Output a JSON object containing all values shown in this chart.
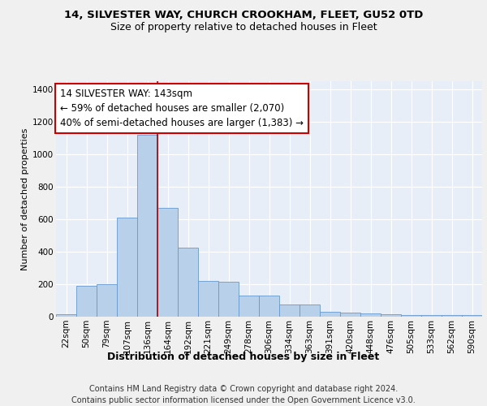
{
  "title1": "14, SILVESTER WAY, CHURCH CROOKHAM, FLEET, GU52 0TD",
  "title2": "Size of property relative to detached houses in Fleet",
  "xlabel": "Distribution of detached houses by size in Fleet",
  "ylabel": "Number of detached properties",
  "categories": [
    "22sqm",
    "50sqm",
    "79sqm",
    "107sqm",
    "136sqm",
    "164sqm",
    "192sqm",
    "221sqm",
    "249sqm",
    "278sqm",
    "306sqm",
    "334sqm",
    "363sqm",
    "391sqm",
    "420sqm",
    "448sqm",
    "476sqm",
    "505sqm",
    "533sqm",
    "562sqm",
    "590sqm"
  ],
  "values": [
    15,
    190,
    200,
    610,
    1120,
    670,
    425,
    220,
    215,
    130,
    130,
    75,
    75,
    30,
    25,
    20,
    15,
    12,
    10,
    8,
    10
  ],
  "bar_color": "#b8d0ea",
  "bar_edge_color": "#6699cc",
  "background_color": "#e8eef8",
  "grid_color": "#ffffff",
  "annotation_box_text": "14 SILVESTER WAY: 143sqm\n← 59% of detached houses are smaller (2,070)\n40% of semi-detached houses are larger (1,383) →",
  "annotation_box_color": "#ffffff",
  "annotation_box_edge": "#cc0000",
  "redline_color": "#aa0000",
  "ylim": [
    0,
    1450
  ],
  "yticks": [
    0,
    200,
    400,
    600,
    800,
    1000,
    1200,
    1400
  ],
  "footer": "Contains HM Land Registry data © Crown copyright and database right 2024.\nContains public sector information licensed under the Open Government Licence v3.0.",
  "title1_fontsize": 9.5,
  "title2_fontsize": 9,
  "xlabel_fontsize": 9,
  "ylabel_fontsize": 8,
  "tick_fontsize": 7.5,
  "annotation_fontsize": 8.5,
  "footer_fontsize": 7
}
